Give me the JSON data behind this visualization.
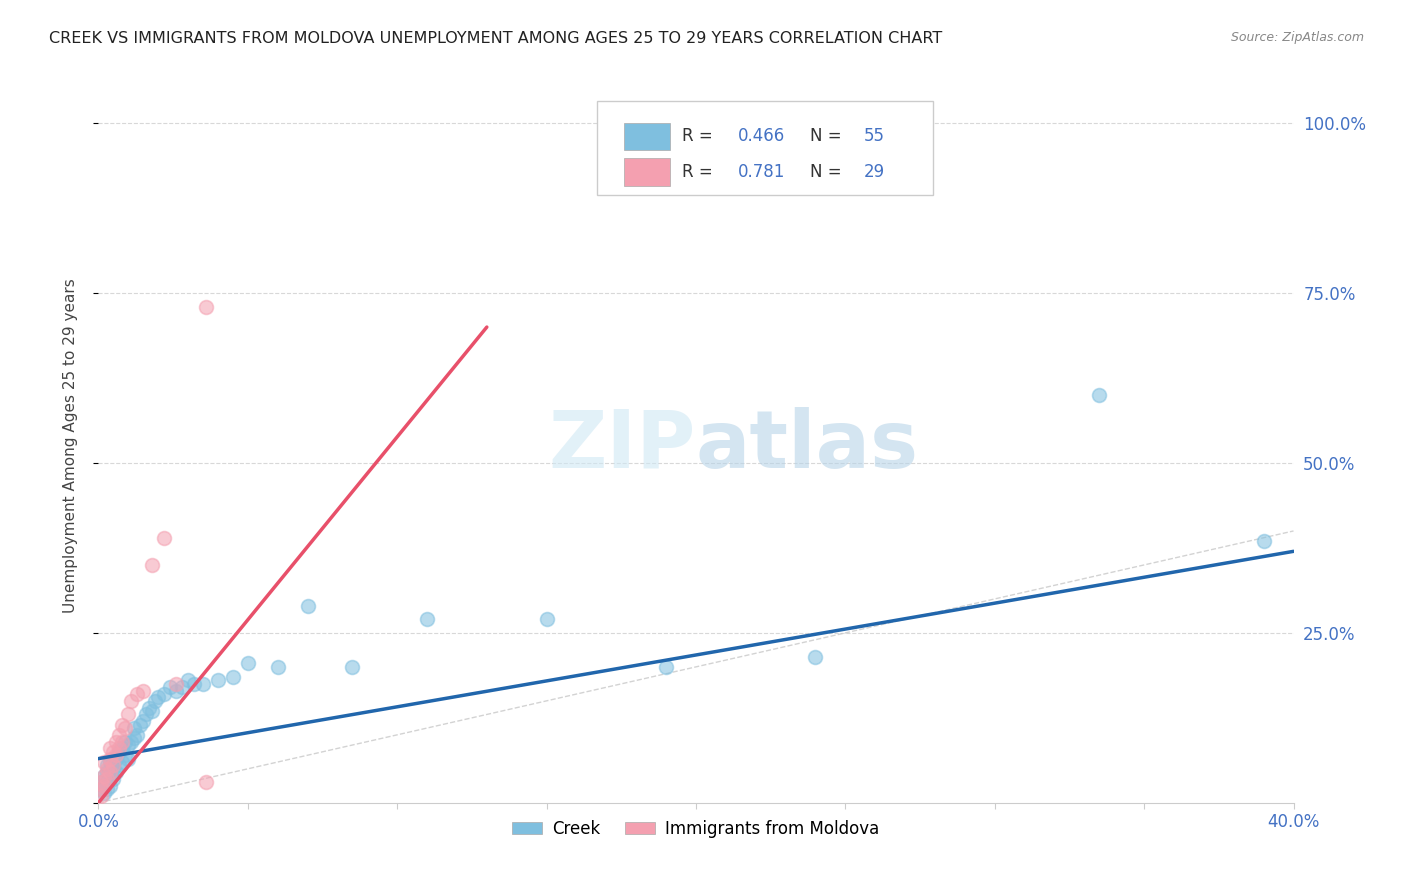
{
  "title": "CREEK VS IMMIGRANTS FROM MOLDOVA UNEMPLOYMENT AMONG AGES 25 TO 29 YEARS CORRELATION CHART",
  "source": "Source: ZipAtlas.com",
  "ylabel": "Unemployment Among Ages 25 to 29 years",
  "xlim": [
    0.0,
    0.4
  ],
  "ylim": [
    0.0,
    1.05
  ],
  "creek_color": "#7fbfdf",
  "moldova_color": "#f4a0b0",
  "creek_line_color": "#2166ac",
  "moldova_line_color": "#e8506a",
  "diagonal_color": "#c8c8c8",
  "watermark": "ZIPatlas",
  "creek_scatter_x": [
    0.001,
    0.001,
    0.002,
    0.002,
    0.002,
    0.003,
    0.003,
    0.003,
    0.003,
    0.004,
    0.004,
    0.004,
    0.005,
    0.005,
    0.005,
    0.006,
    0.006,
    0.007,
    0.007,
    0.008,
    0.008,
    0.009,
    0.009,
    0.01,
    0.01,
    0.011,
    0.012,
    0.012,
    0.013,
    0.014,
    0.015,
    0.016,
    0.017,
    0.018,
    0.019,
    0.02,
    0.022,
    0.024,
    0.026,
    0.028,
    0.03,
    0.032,
    0.035,
    0.04,
    0.045,
    0.05,
    0.06,
    0.07,
    0.085,
    0.11,
    0.15,
    0.19,
    0.24,
    0.335,
    0.39
  ],
  "creek_scatter_y": [
    0.02,
    0.03,
    0.015,
    0.025,
    0.04,
    0.02,
    0.03,
    0.045,
    0.055,
    0.025,
    0.045,
    0.06,
    0.035,
    0.05,
    0.065,
    0.045,
    0.065,
    0.055,
    0.075,
    0.06,
    0.08,
    0.07,
    0.09,
    0.065,
    0.085,
    0.09,
    0.095,
    0.11,
    0.1,
    0.115,
    0.12,
    0.13,
    0.14,
    0.135,
    0.15,
    0.155,
    0.16,
    0.17,
    0.165,
    0.17,
    0.18,
    0.175,
    0.175,
    0.18,
    0.185,
    0.205,
    0.2,
    0.29,
    0.2,
    0.27,
    0.27,
    0.2,
    0.215,
    0.6,
    0.385
  ],
  "moldova_scatter_x": [
    0.001,
    0.001,
    0.001,
    0.002,
    0.002,
    0.002,
    0.003,
    0.003,
    0.004,
    0.004,
    0.004,
    0.005,
    0.005,
    0.006,
    0.006,
    0.007,
    0.007,
    0.008,
    0.008,
    0.009,
    0.01,
    0.011,
    0.013,
    0.015,
    0.018,
    0.022,
    0.026,
    0.036,
    0.036
  ],
  "moldova_scatter_y": [
    0.01,
    0.02,
    0.03,
    0.025,
    0.04,
    0.06,
    0.035,
    0.05,
    0.045,
    0.065,
    0.08,
    0.055,
    0.075,
    0.07,
    0.09,
    0.08,
    0.1,
    0.09,
    0.115,
    0.11,
    0.13,
    0.15,
    0.16,
    0.165,
    0.35,
    0.39,
    0.175,
    0.73,
    0.03
  ],
  "creek_line_x": [
    0.0,
    0.4
  ],
  "creek_line_y": [
    0.065,
    0.37
  ],
  "moldova_line_x": [
    0.0,
    0.13
  ],
  "moldova_line_y": [
    0.0,
    0.7
  ],
  "background_color": "#ffffff",
  "grid_color": "#d8d8d8"
}
